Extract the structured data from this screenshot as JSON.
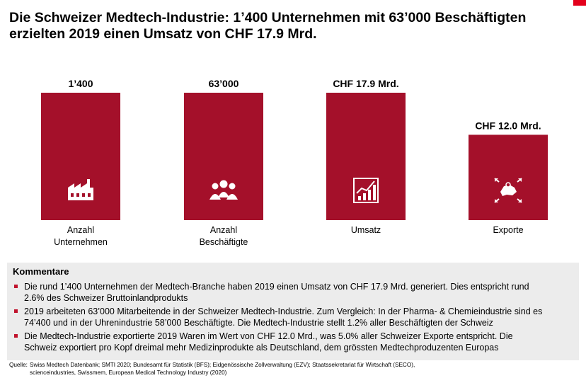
{
  "title": {
    "line1": "Die Schweizer Medtech-Industrie: 1’400 Unternehmen mit 63’000 Beschäftigten",
    "line2": "erzielten 2019 einen Umsatz von CHF 17.9 Mrd."
  },
  "colors": {
    "bar": "#a4102a",
    "accent": "#e3001b",
    "comment_bg": "#ececec"
  },
  "chart_data": {
    "type": "bar",
    "value_scale": "relative height, not to a common axis",
    "categories": [
      {
        "line1": "Anzahl",
        "line2": "Unternehmen",
        "value": 1400,
        "value_label": "1’400",
        "icon": "factory-icon"
      },
      {
        "line1": "Anzahl",
        "line2": "Beschäftigte",
        "value": 63000,
        "value_label": "63’000",
        "icon": "people-icon"
      },
      {
        "line1": "Umsatz",
        "line2": "",
        "value": 17.9,
        "value_label": "CHF 17.9 Mrd.",
        "icon": "growth-chart-icon"
      },
      {
        "line1": "Exporte",
        "line2": "",
        "value": 12.0,
        "value_label": "CHF 12.0 Mrd.",
        "icon": "swiss-map-export-icon"
      }
    ],
    "relative_heights": [
      1,
      1,
      1,
      0.67
    ]
  },
  "comments": {
    "heading": "Kommentare",
    "items": [
      {
        "line1": "Die rund 1’400 Unternehmen der Medtech-Branche haben 2019 einen Umsatz von CHF 17.9 Mrd. generiert. Dies entspricht rund",
        "line2": "2.6% des Schweizer Bruttoinlandprodukts"
      },
      {
        "line1": "2019 arbeiteten 63’000 Mitarbeitende in der Schweizer Medtech-Industrie. Zum Vergleich: In der Pharma- & Chemieindustrie sind es",
        "line2": "74’400 und in der Uhrenindustrie 58’000 Beschäftigte. Die Medtech-Industrie stellt 1.2% aller Beschäftigten der Schweiz"
      },
      {
        "line1": "Die Medtech-Industrie exportierte 2019 Waren im Wert von CHF 12.0 Mrd., was 5.0% aller Schweizer Exporte entspricht. Die",
        "line2": "Schweiz exportiert pro Kopf dreimal mehr Medizinprodukte als Deutschland, dem grössten Medtechproduzenten Europas"
      }
    ]
  },
  "source": {
    "label": "Quelle:",
    "line1": "Swiss Medtech Datenbank; SMTI 2020; Bundesamt für Statistik (BFS); Eidgenössische Zollverwaltung (EZV); Staatssekretariat für Wirtschaft (SECO),",
    "line2": "scienceindustries, Swissmem, European Medical Technology Industry (2020)"
  }
}
